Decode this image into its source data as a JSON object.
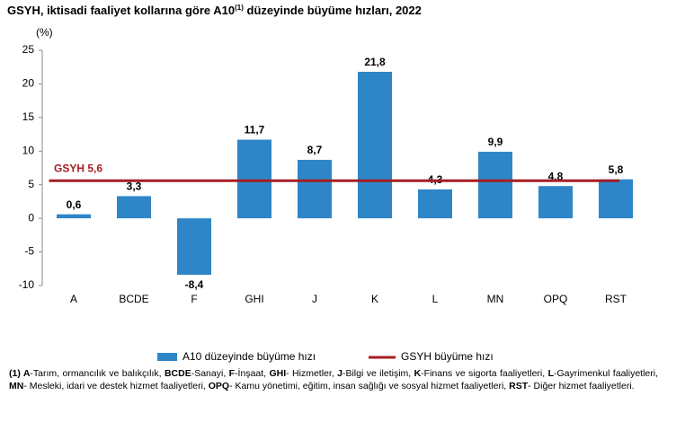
{
  "chart_data": {
    "type": "bar",
    "title": {
      "before": "GSYH, iktisadi faaliyet kollarına göre A10",
      "sup": "(1)",
      "after": " düzeyinde büyüme hızları, 2022"
    },
    "ylabel": "(%)",
    "categories": [
      "A",
      "BCDE",
      "F",
      "GHI",
      "J",
      "K",
      "L",
      "MN",
      "OPQ",
      "RST"
    ],
    "series": [
      {
        "name": "A10 düzeyinde büyüme hızı",
        "color": "#2e86c8",
        "values": [
          0.6,
          3.3,
          -8.4,
          11.7,
          8.7,
          21.8,
          4.3,
          9.9,
          4.8,
          5.8
        ],
        "value_labels": [
          "0,6",
          "3,3",
          "-8,4",
          "11,7",
          "8,7",
          "21,8",
          "4,3",
          "9,9",
          "4,8",
          "5,8"
        ]
      }
    ],
    "reference_line": {
      "name": "GSYH büyüme hızı",
      "value": 5.6,
      "label": "GSYH 5,6",
      "color": "#a61e22"
    },
    "ylim": [
      -10,
      25
    ],
    "yticks": [
      -10,
      -5,
      0,
      5,
      10,
      15,
      20,
      25
    ],
    "grid": false,
    "footnote": [
      {
        "text": "(1) A",
        "bold": true
      },
      {
        "text": "-Tarım, ormancılık ve balıkçılık, ",
        "bold": false
      },
      {
        "text": "BCDE",
        "bold": true
      },
      {
        "text": "-Sanayi, ",
        "bold": false
      },
      {
        "text": "F",
        "bold": true
      },
      {
        "text": "-İnşaat, ",
        "bold": false
      },
      {
        "text": "GHI",
        "bold": true
      },
      {
        "text": "- Hizmetler, ",
        "bold": false
      },
      {
        "text": "J",
        "bold": true
      },
      {
        "text": "-Bilgi ve iletişim, ",
        "bold": false
      },
      {
        "text": "K",
        "bold": true
      },
      {
        "text": "-Finans ve sigorta faaliyetleri, ",
        "bold": false
      },
      {
        "text": "L",
        "bold": true
      },
      {
        "text": "-Gayrimenkul faaliyetleri, ",
        "bold": false
      },
      {
        "text": "MN",
        "bold": true
      },
      {
        "text": "- Mesleki, idari ve destek hizmet faaliyetleri, ",
        "bold": false
      },
      {
        "text": "OPQ",
        "bold": true
      },
      {
        "text": "- Kamu yönetimi, eğitim, insan sağlığı ve sosyal hizmet faaliyetleri, ",
        "bold": false
      },
      {
        "text": "RST",
        "bold": true
      },
      {
        "text": "- Diğer hizmet faaliyetleri.",
        "bold": false
      }
    ]
  }
}
